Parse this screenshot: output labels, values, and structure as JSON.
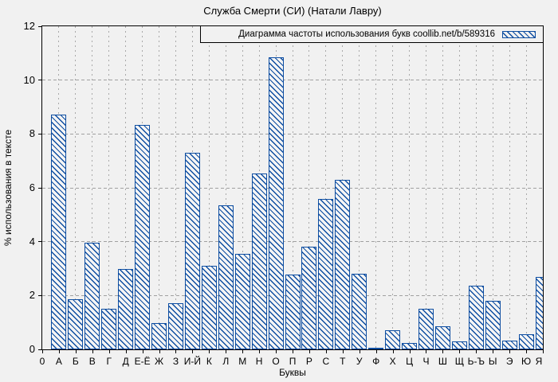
{
  "window": {
    "background": "#f1f1f1"
  },
  "colors": {
    "bar_blue": "#0d4da1",
    "grid_gray": "#a9a9a9",
    "axis_black": "#000000",
    "background": "#f1f1f1"
  },
  "chart_data": {
    "type": "bar",
    "title": "Служба Смерти (СИ) (Натали Лавру)",
    "legend": "Диаграмма частоты использования букв coollib.net/b/589316",
    "legend_position": "top-right-inside",
    "legend_swatch": "blue-hatched-box",
    "xlabel": "Буквы",
    "ylabel": "% использования в тексте",
    "origin_label": "0",
    "ylim": [
      0,
      12
    ],
    "yticks": [
      0,
      2,
      4,
      6,
      8,
      10,
      12
    ],
    "grid": true,
    "bar_style": "diagonal-hatch",
    "categories": [
      "А",
      "Б",
      "В",
      "Г",
      "Д",
      "Е-Ё",
      "Ж",
      "З",
      "И-Й",
      "К",
      "Л",
      "М",
      "Н",
      "О",
      "П",
      "Р",
      "С",
      "Т",
      "У",
      "Ф",
      "Х",
      "Ц",
      "Ч",
      "Ш",
      "Щ",
      "Ь-Ъ",
      "Ы",
      "Э",
      "Ю",
      "Я"
    ],
    "values": [
      8.72,
      1.85,
      3.97,
      1.51,
      3.0,
      8.35,
      0.97,
      1.72,
      7.29,
      3.1,
      5.35,
      3.55,
      6.52,
      10.85,
      2.78,
      3.8,
      5.6,
      6.29,
      2.8,
      0.07,
      0.7,
      0.25,
      1.5,
      0.87,
      0.3,
      2.37,
      1.8,
      0.33,
      0.55,
      2.7
    ]
  }
}
